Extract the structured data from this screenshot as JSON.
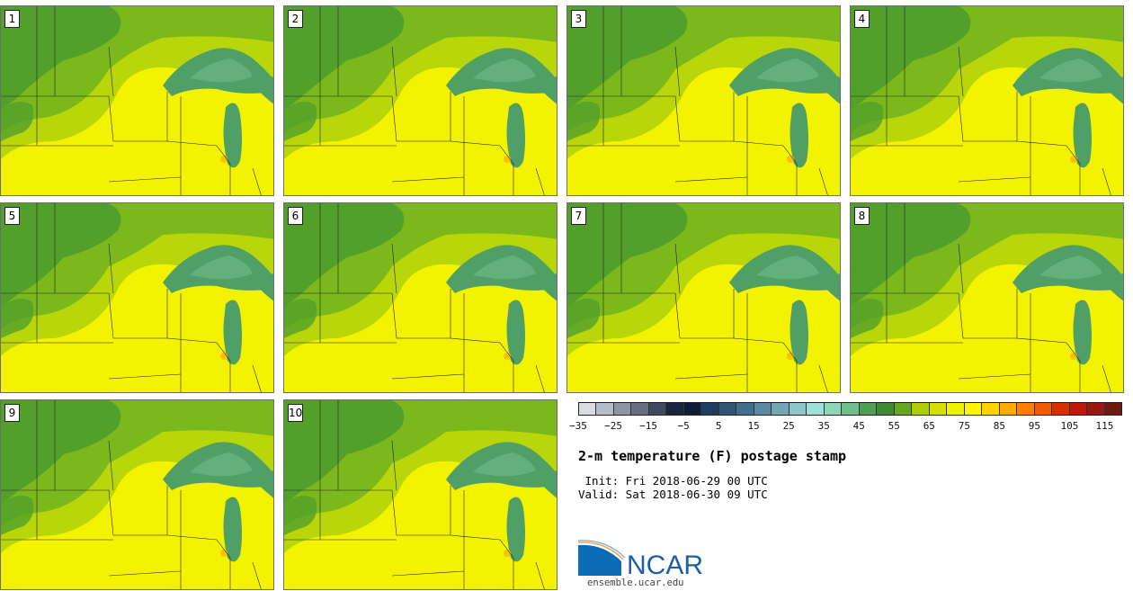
{
  "figure": {
    "title": "2-m temperature (F) postage stamp",
    "init": " Init: Fri 2018-06-29 00 UTC",
    "valid": "Valid: Sat 2018-06-30 09 UTC",
    "site": "ensemble.ucar.edu",
    "logo_text": "NCAR"
  },
  "members": [
    "1",
    "2",
    "3",
    "4",
    "5",
    "6",
    "7",
    "8",
    "9",
    "10"
  ],
  "colorbar": {
    "colors": [
      "#d9dde2",
      "#b4bcc6",
      "#8c95a4",
      "#666f82",
      "#3f4a61",
      "#1b2440",
      "#0e1c38",
      "#1f3d5e",
      "#2f5878",
      "#436f8e",
      "#5a8aa3",
      "#75a6b5",
      "#8ec5c6",
      "#9fe0d8",
      "#8fd6b5",
      "#6fc08e",
      "#4f9f55",
      "#3d8a33",
      "#67a81e",
      "#b0cc05",
      "#d6e000",
      "#f2f200",
      "#fff500",
      "#ffd200",
      "#ffaa00",
      "#ff8000",
      "#f05a00",
      "#d63000",
      "#b81c0a",
      "#961a10",
      "#6e1a0e"
    ],
    "tick_labels": [
      "−35",
      "−25",
      "−15",
      "−5",
      "5",
      "15",
      "25",
      "35",
      "45",
      "55",
      "65",
      "75",
      "85",
      "95",
      "105",
      "115"
    ]
  },
  "colors": {
    "land_cool": "#52a02a",
    "land_mid": "#7ab81c",
    "land_warm": "#b9d60a",
    "land_hot": "#f3f300",
    "lake": "#4f9f66",
    "lake_deep": "#64b07a",
    "border": "#222222"
  }
}
